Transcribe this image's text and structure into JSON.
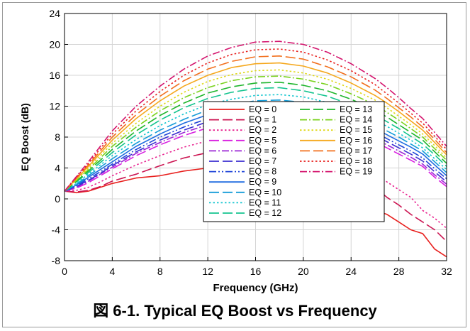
{
  "caption": "図 6-1. Typical EQ Boost vs Frequency",
  "chart_data": {
    "type": "line",
    "title": "",
    "xlabel": "Frequency (GHz)",
    "ylabel": "EQ Boost (dB)",
    "xlim": [
      0,
      32
    ],
    "ylim": [
      -8,
      24
    ],
    "xticks": [
      0,
      4,
      8,
      12,
      16,
      20,
      24,
      28,
      32
    ],
    "yticks": [
      -8,
      -4,
      0,
      4,
      8,
      12,
      16,
      20,
      24
    ],
    "grid": true,
    "legend_placement": "center",
    "legend_columns": 2,
    "x": [
      0,
      1,
      2,
      3,
      4,
      6,
      8,
      10,
      12,
      14,
      16,
      18,
      20,
      22,
      24,
      26,
      27,
      28,
      29,
      30,
      31,
      32
    ],
    "series": [
      {
        "name": "EQ = 0",
        "color": "#e8201e",
        "dash": "solid",
        "values": [
          1.0,
          0.8,
          1.0,
          1.5,
          2.0,
          2.7,
          3.0,
          3.6,
          4.0,
          4.0,
          3.8,
          3.6,
          3.0,
          2.5,
          0.5,
          -1.5,
          -2.0,
          -3.0,
          -4.0,
          -4.5,
          -6.5,
          -7.5
        ]
      },
      {
        "name": "EQ = 1",
        "color": "#cc1552",
        "dash": "long",
        "values": [
          1.0,
          0.9,
          1.1,
          1.6,
          2.3,
          3.2,
          4.3,
          5.3,
          6.0,
          6.6,
          6.9,
          6.8,
          6.2,
          5.2,
          3.5,
          1.5,
          0.2,
          -0.8,
          -2.0,
          -3.0,
          -4.0,
          -5.5
        ]
      },
      {
        "name": "EQ = 2",
        "color": "#e8218f",
        "dash": "dot",
        "values": [
          1.0,
          1.1,
          1.5,
          2.2,
          3.0,
          4.4,
          5.6,
          6.7,
          7.5,
          8.1,
          8.5,
          8.4,
          7.9,
          6.8,
          5.3,
          3.3,
          2.2,
          1.2,
          0.2,
          -1.5,
          -2.5,
          -3.8
        ]
      },
      {
        "name": "EQ = 5",
        "color": "#d81ee0",
        "dash": "long",
        "values": [
          1.0,
          1.4,
          2.1,
          3.0,
          3.9,
          5.6,
          7.0,
          8.2,
          9.2,
          9.9,
          10.4,
          10.5,
          10.2,
          9.5,
          8.6,
          7.4,
          6.6,
          5.8,
          5.0,
          4.2,
          2.8,
          1.6
        ]
      },
      {
        "name": "EQ = 6",
        "color": "#9b27d6",
        "dash": "dashdot",
        "values": [
          1.0,
          1.5,
          2.3,
          3.2,
          4.1,
          5.9,
          7.3,
          8.6,
          9.6,
          10.3,
          10.8,
          10.9,
          10.6,
          9.9,
          9.0,
          7.8,
          7.0,
          6.2,
          5.4,
          4.5,
          3.1,
          1.9
        ]
      },
      {
        "name": "EQ = 7",
        "color": "#3b2fd0",
        "dash": "long",
        "values": [
          1.0,
          1.6,
          2.4,
          3.3,
          4.3,
          6.1,
          7.6,
          8.9,
          10.0,
          10.7,
          11.2,
          11.3,
          11.0,
          10.3,
          9.4,
          8.2,
          7.4,
          6.6,
          5.8,
          4.9,
          3.5,
          2.2
        ]
      },
      {
        "name": "EQ = 8",
        "color": "#1f45d8",
        "dash": "dashdotdot",
        "values": [
          1.0,
          1.7,
          2.6,
          3.5,
          4.5,
          6.4,
          8.0,
          9.3,
          10.4,
          11.1,
          11.6,
          11.7,
          11.4,
          10.7,
          9.8,
          8.6,
          7.8,
          7.0,
          6.2,
          5.3,
          3.9,
          2.6
        ]
      },
      {
        "name": "EQ = 9",
        "color": "#1e6ce0",
        "dash": "solid",
        "values": [
          1.0,
          1.8,
          2.8,
          3.8,
          4.8,
          6.8,
          8.4,
          9.8,
          10.9,
          11.6,
          12.1,
          12.2,
          11.9,
          11.2,
          10.3,
          9.1,
          8.3,
          7.5,
          6.7,
          5.8,
          4.4,
          3.0
        ]
      },
      {
        "name": "EQ = 10",
        "color": "#139bd8",
        "dash": "long",
        "values": [
          1.0,
          1.9,
          3.0,
          4.1,
          5.2,
          7.2,
          8.9,
          10.3,
          11.5,
          12.2,
          12.7,
          12.8,
          12.5,
          11.8,
          10.9,
          9.6,
          8.8,
          8.0,
          7.1,
          6.2,
          4.8,
          3.4
        ]
      },
      {
        "name": "EQ = 11",
        "color": "#12c6cf",
        "dash": "dot",
        "values": [
          1.0,
          2.0,
          3.2,
          4.4,
          5.6,
          7.7,
          9.5,
          11.0,
          12.2,
          12.9,
          13.4,
          13.5,
          13.2,
          12.5,
          11.5,
          10.2,
          9.4,
          8.5,
          7.6,
          6.6,
          5.2,
          3.8
        ]
      },
      {
        "name": "EQ = 12",
        "color": "#14c48e",
        "dash": "long",
        "values": [
          1.0,
          2.2,
          3.4,
          4.7,
          6.0,
          8.3,
          10.2,
          11.8,
          13.0,
          13.8,
          14.3,
          14.4,
          14.0,
          13.3,
          12.2,
          10.9,
          10.0,
          9.1,
          8.1,
          7.1,
          5.7,
          4.2
        ]
      },
      {
        "name": "EQ = 13",
        "color": "#1eb52c",
        "dash": "long",
        "values": [
          1.0,
          2.3,
          3.6,
          5.0,
          6.4,
          8.8,
          10.8,
          12.4,
          13.7,
          14.5,
          15.0,
          15.1,
          14.7,
          14.0,
          12.9,
          11.5,
          10.6,
          9.6,
          8.6,
          7.6,
          6.1,
          4.6
        ]
      },
      {
        "name": "EQ = 14",
        "color": "#7ad21e",
        "dash": "dashdot",
        "values": [
          1.0,
          2.4,
          3.8,
          5.3,
          6.8,
          9.3,
          11.4,
          13.1,
          14.4,
          15.3,
          15.8,
          15.9,
          15.5,
          14.8,
          13.6,
          12.2,
          11.2,
          10.2,
          9.1,
          8.0,
          6.5,
          5.0
        ]
      },
      {
        "name": "EQ = 15",
        "color": "#e0d81a",
        "dash": "dot",
        "values": [
          1.0,
          2.5,
          4.0,
          5.6,
          7.2,
          9.8,
          12.0,
          13.8,
          15.2,
          16.1,
          16.6,
          16.7,
          16.3,
          15.5,
          14.3,
          12.8,
          11.8,
          10.7,
          9.6,
          8.4,
          6.9,
          5.3
        ]
      },
      {
        "name": "EQ = 16",
        "color": "#f5a81e",
        "dash": "solid",
        "values": [
          1.0,
          2.6,
          4.2,
          5.9,
          7.6,
          10.4,
          12.7,
          14.6,
          16.0,
          17.0,
          17.5,
          17.6,
          17.2,
          16.3,
          15.0,
          13.4,
          12.4,
          11.3,
          10.1,
          8.9,
          7.3,
          5.7
        ]
      },
      {
        "name": "EQ = 17",
        "color": "#f2701e",
        "dash": "long",
        "values": [
          1.0,
          2.7,
          4.4,
          6.2,
          8.0,
          10.9,
          13.3,
          15.3,
          16.8,
          17.8,
          18.4,
          18.5,
          18.1,
          17.1,
          15.8,
          14.1,
          13.0,
          11.8,
          10.6,
          9.3,
          7.7,
          6.0
        ]
      },
      {
        "name": "EQ = 18",
        "color": "#e8201e",
        "dash": "dot",
        "values": [
          1.0,
          2.8,
          4.6,
          6.5,
          8.4,
          11.4,
          13.9,
          16.0,
          17.6,
          18.7,
          19.3,
          19.4,
          19.0,
          18.0,
          16.6,
          14.8,
          13.6,
          12.4,
          11.1,
          9.8,
          8.1,
          6.4
        ]
      },
      {
        "name": "EQ = 19",
        "color": "#d4156e",
        "dash": "dashdot",
        "values": [
          1.0,
          2.9,
          4.8,
          6.8,
          8.8,
          12.0,
          14.6,
          16.8,
          18.5,
          19.6,
          20.3,
          20.4,
          20.0,
          19.0,
          17.5,
          15.6,
          14.4,
          13.1,
          11.7,
          10.4,
          8.6,
          6.8
        ]
      }
    ]
  }
}
